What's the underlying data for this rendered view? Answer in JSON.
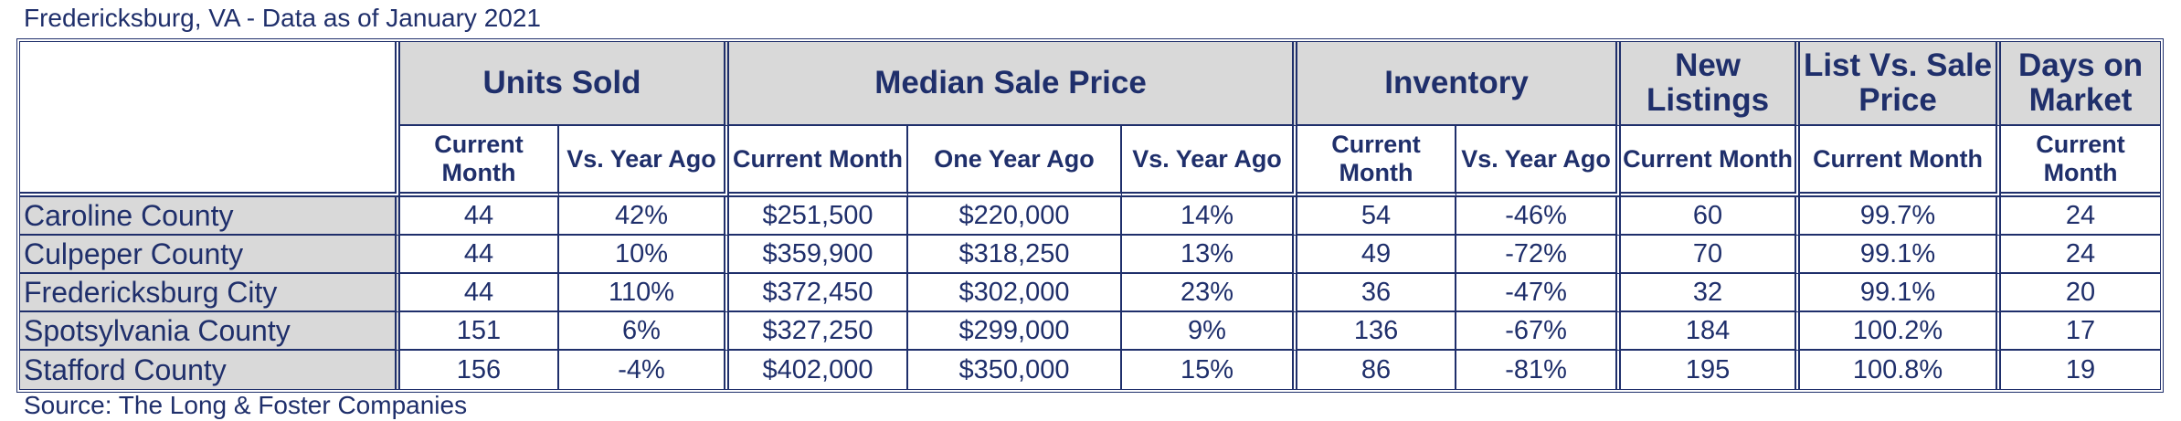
{
  "caption_top": "Fredericksburg, VA - Data as of January 2021",
  "caption_bottom": "Source: The Long & Foster Companies",
  "groups": {
    "units_sold": "Units Sold",
    "median_sale_price": "Median Sale Price",
    "inventory": "Inventory",
    "new_listings": "New Listings",
    "list_vs_sale": "List Vs. Sale Price",
    "days_on_market": "Days on Market"
  },
  "subheaders": {
    "units_current": "Current Month",
    "units_vs": "Vs. Year Ago",
    "price_current": "Current Month",
    "price_one_year": "One Year Ago",
    "price_vs": "Vs. Year Ago",
    "inv_current": "Current Month",
    "inv_vs": "Vs. Year Ago",
    "new_current": "Current Month",
    "list_current": "Current Month",
    "days_current": "Current Month"
  },
  "rows": [
    {
      "name": "Caroline County",
      "units": "44",
      "units_vs": "42%",
      "price": "$251,500",
      "price_prev": "$220,000",
      "price_vs": "14%",
      "inv": "54",
      "inv_vs": "-46%",
      "new": "60",
      "list_sale": "99.7%",
      "days": "24"
    },
    {
      "name": "Culpeper County",
      "units": "44",
      "units_vs": "10%",
      "price": "$359,900",
      "price_prev": "$318,250",
      "price_vs": "13%",
      "inv": "49",
      "inv_vs": "-72%",
      "new": "70",
      "list_sale": "99.1%",
      "days": "24"
    },
    {
      "name": "Fredericksburg City",
      "units": "44",
      "units_vs": "110%",
      "price": "$372,450",
      "price_prev": "$302,000",
      "price_vs": "23%",
      "inv": "36",
      "inv_vs": "-47%",
      "new": "32",
      "list_sale": "99.1%",
      "days": "20"
    },
    {
      "name": "Spotsylvania County",
      "units": "151",
      "units_vs": "6%",
      "price": "$327,250",
      "price_prev": "$299,000",
      "price_vs": "9%",
      "inv": "136",
      "inv_vs": "-67%",
      "new": "184",
      "list_sale": "100.2%",
      "days": "17"
    },
    {
      "name": "Stafford County",
      "units": "156",
      "units_vs": "-4%",
      "price": "$402,000",
      "price_prev": "$350,000",
      "price_vs": "15%",
      "inv": "86",
      "inv_vs": "-81%",
      "new": "195",
      "list_sale": "100.8%",
      "days": "19"
    }
  ],
  "colors": {
    "text": "#1f2f6b",
    "header_fill": "#d9d9d9",
    "border": "#1f2f6b"
  }
}
